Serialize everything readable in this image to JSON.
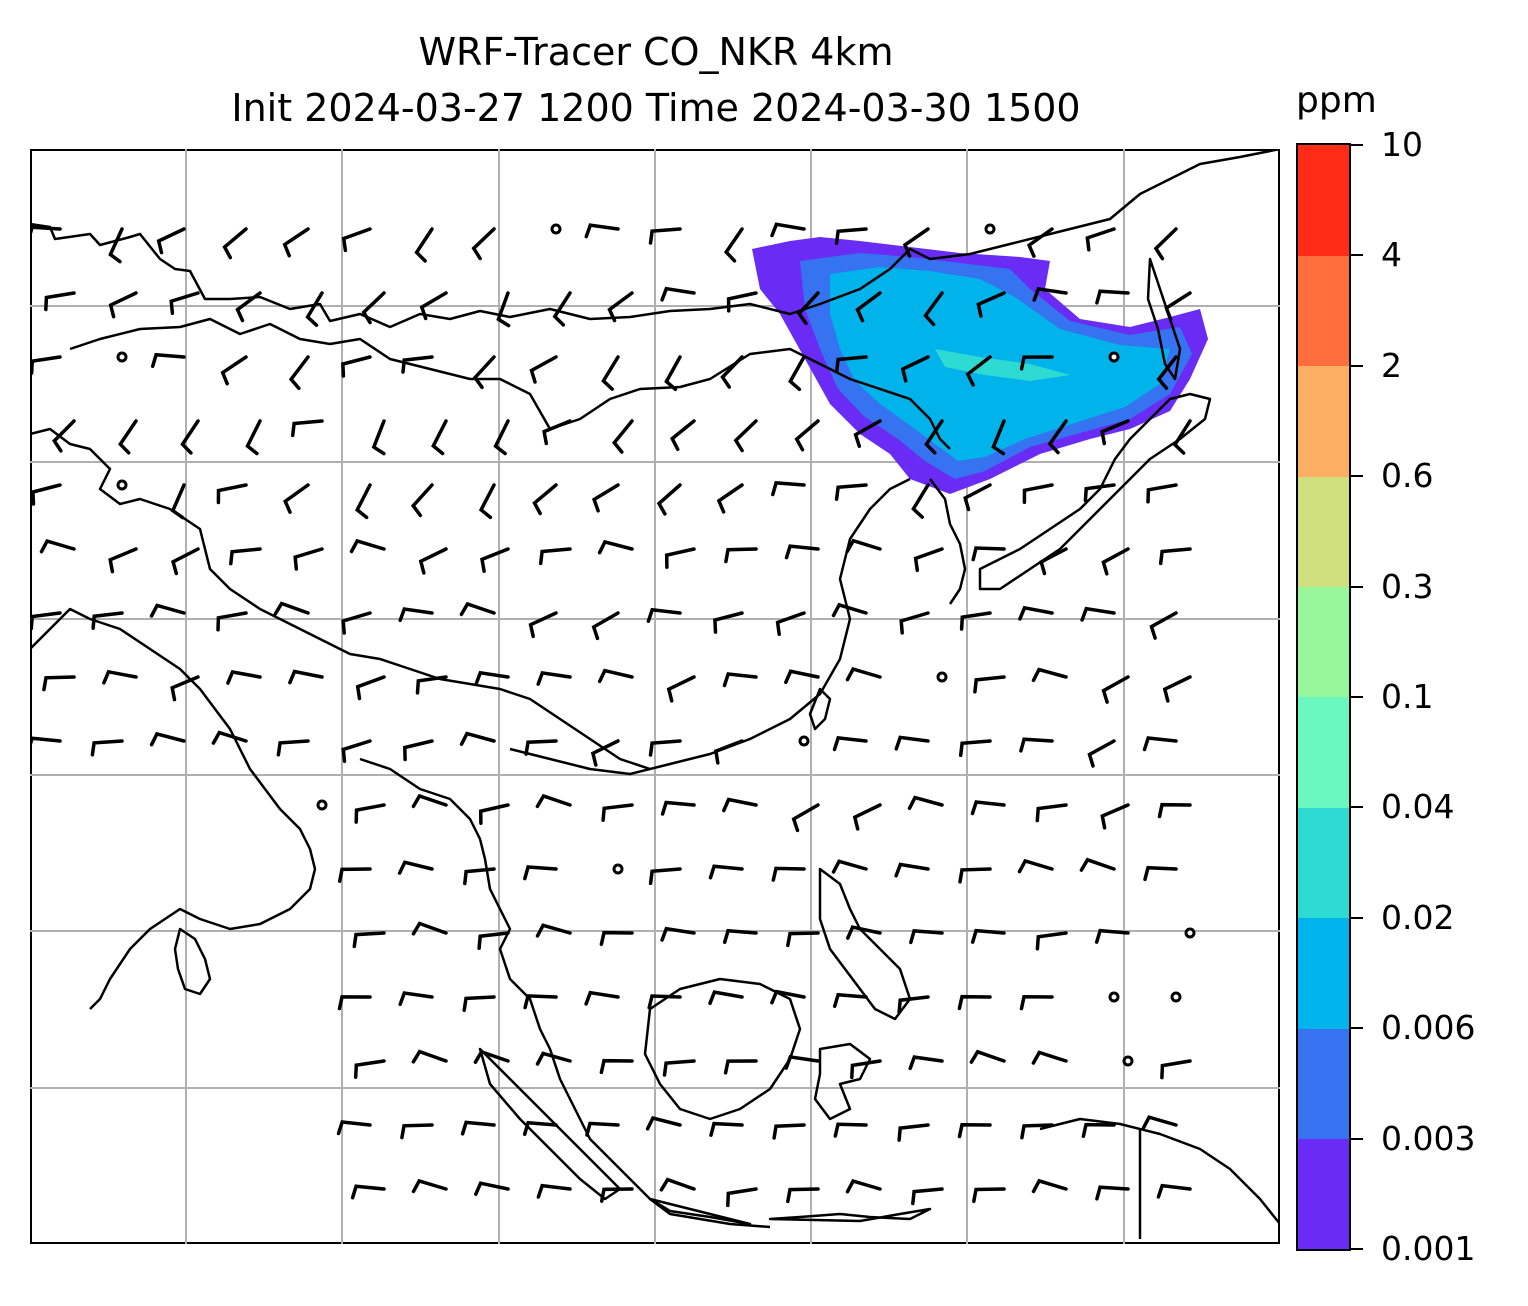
{
  "title": {
    "line1": "WRF-Tracer CO_NKR 4km",
    "line2": "Init 2024-03-27 1200 Time 2024-03-30 1500"
  },
  "colorbar": {
    "unit": "ppm",
    "levels": [
      "0.001",
      "0.003",
      "0.006",
      "0.02",
      "0.04",
      "0.1",
      "0.3",
      "0.6",
      "2",
      "4",
      "10"
    ],
    "colors": [
      "#6a2cf5",
      "#3573f0",
      "#00b3ea",
      "#2edbd3",
      "#6af8c0",
      "#97f79a",
      "#d1e07f",
      "#fcaf62",
      "#ff6e3c",
      "#ff2d17"
    ]
  },
  "map": {
    "variable": "CO tracer concentration",
    "plume_colors": {
      "outer": "#6a2cf5",
      "mid": "#3573f0",
      "core": "#00b3ea",
      "streak": "#2edbd3"
    },
    "grid_color": "#b0b0b0",
    "coastline_color": "#000000",
    "wind_barb_color": "#000000"
  }
}
